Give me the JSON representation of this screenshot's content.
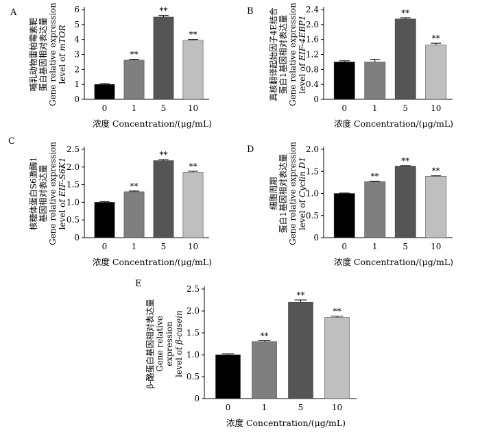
{
  "chart_data": [
    {
      "panel": "A",
      "type": "bar",
      "categories": [
        "0",
        "1",
        "5",
        "10"
      ],
      "values": [
        1.0,
        2.62,
        5.5,
        3.95
      ],
      "errors": [
        0.05,
        0.06,
        0.1,
        0.05
      ],
      "significance": [
        "",
        "**",
        "**",
        "**"
      ],
      "ylim": [
        0,
        6
      ],
      "yticks": [
        "0",
        "1",
        "2",
        "3",
        "4",
        "5",
        "6"
      ],
      "ylabel": [
        "哺乳动物雷帕霉素靶",
        "蛋白基因相对表达量",
        "Gene relative expression",
        "level of mTOR"
      ],
      "xlabel": "浓度  Concentration/(μg/mL)",
      "colors": [
        "#000000",
        "#7f7f7f",
        "#555555",
        "#bfbfbf"
      ]
    },
    {
      "panel": "B",
      "type": "bar",
      "categories": [
        "0",
        "1",
        "5",
        "10"
      ],
      "values": [
        1.0,
        1.0,
        2.15,
        1.45
      ],
      "errors": [
        0.03,
        0.07,
        0.03,
        0.05
      ],
      "significance": [
        "",
        "",
        "**",
        "**"
      ],
      "ylim": [
        0,
        2.4
      ],
      "yticks": [
        "0",
        "0.4",
        "0.8",
        "1.2",
        "1.6",
        "2.0",
        "2.4"
      ],
      "ylabel": [
        "真核翻译起始因子4E结合",
        "蛋白1基因相对表达量",
        "Gene relative expression",
        "level of EIF-4EBP1"
      ],
      "xlabel": "浓度  Concentration/(μg/mL)",
      "colors": [
        "#000000",
        "#7f7f7f",
        "#555555",
        "#bfbfbf"
      ]
    },
    {
      "panel": "C",
      "type": "bar",
      "categories": [
        "0",
        "1",
        "5",
        "10"
      ],
      "values": [
        1.0,
        1.3,
        2.18,
        1.85
      ],
      "errors": [
        0.02,
        0.02,
        0.03,
        0.03
      ],
      "significance": [
        "",
        "**",
        "**",
        "**"
      ],
      "ylim": [
        0,
        2.5
      ],
      "yticks": [
        "0",
        "0.5",
        "1.0",
        "1.5",
        "2.0",
        "2.5"
      ],
      "ylabel": [
        "核糖体蛋白S6激酶1",
        "基因相对表达量",
        "Gene relative expression",
        "level of EIF-S6K1"
      ],
      "xlabel": "浓度  Concentration/(μg/mL)",
      "colors": [
        "#000000",
        "#7f7f7f",
        "#555555",
        "#bfbfbf"
      ]
    },
    {
      "panel": "D",
      "type": "bar",
      "categories": [
        "0",
        "1",
        "5",
        "10"
      ],
      "values": [
        1.0,
        1.27,
        1.62,
        1.39
      ],
      "errors": [
        0.01,
        0.01,
        0.01,
        0.01
      ],
      "significance": [
        "",
        "**",
        "**",
        "**"
      ],
      "ylim": [
        0,
        2.0
      ],
      "yticks": [
        "0",
        "0.5",
        "1.0",
        "1.5",
        "2.0"
      ],
      "ylabel": [
        "细胞周期",
        "蛋白1基因相对表达量",
        "Gene relative expression",
        "level of Cyclin D1"
      ],
      "xlabel": "浓度  Concentration/(μg/mL)",
      "colors": [
        "#000000",
        "#7f7f7f",
        "#555555",
        "#bfbfbf"
      ]
    },
    {
      "panel": "E",
      "type": "bar",
      "categories": [
        "0",
        "1",
        "5",
        "10"
      ],
      "values": [
        1.0,
        1.3,
        2.2,
        1.85
      ],
      "errors": [
        0.02,
        0.02,
        0.05,
        0.03
      ],
      "significance": [
        "",
        "**",
        "**",
        "**"
      ],
      "ylim": [
        0,
        2.5
      ],
      "yticks": [
        "0",
        "0.5",
        "1.0",
        "1.5",
        "2.0",
        "2.5"
      ],
      "ylabel": [
        "β-酪蛋白基因相对表达量",
        "Gene relative",
        "expression",
        "level of β-casein"
      ],
      "xlabel": "浓度  Concentration/(μg/mL)",
      "colors": [
        "#000000",
        "#7f7f7f",
        "#555555",
        "#bfbfbf"
      ]
    }
  ]
}
